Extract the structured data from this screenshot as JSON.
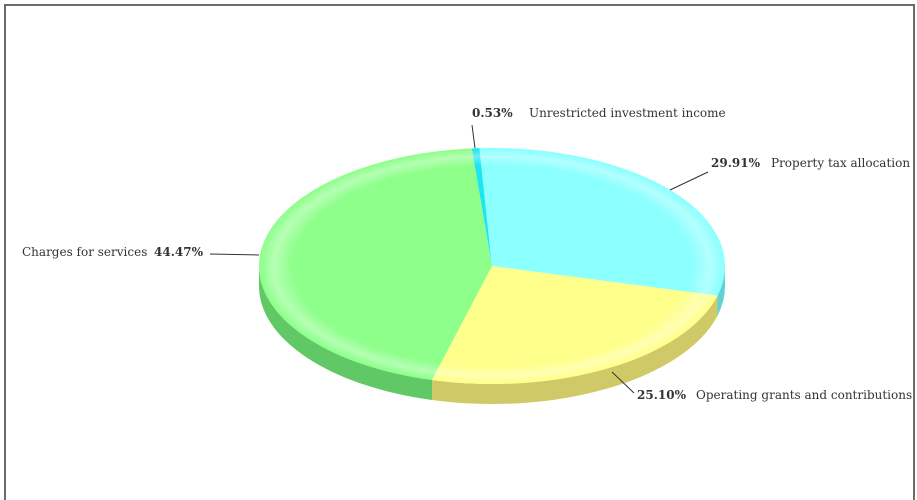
{
  "chart_data": {
    "type": "pie",
    "style": "3d-tilted",
    "title": "",
    "slices": [
      {
        "label": "Unrestricted investment income",
        "value": 0.53,
        "pct_text": "0.53%",
        "color": "#1ee6f0",
        "side_color": "#12b8c4"
      },
      {
        "label": "Property tax allocation",
        "value": 29.91,
        "pct_text": "29.91%",
        "color": "#8cffff",
        "side_color": "#5fd2d8"
      },
      {
        "label": "Operating grants and contributions",
        "value": 25.1,
        "pct_text": "25.10%",
        "color": "#ffff8c",
        "side_color": "#cfc968"
      },
      {
        "label": "Charges for services",
        "value": 44.47,
        "pct_text": "44.47%",
        "color": "#8fff8c",
        "side_color": "#60c965"
      }
    ]
  }
}
